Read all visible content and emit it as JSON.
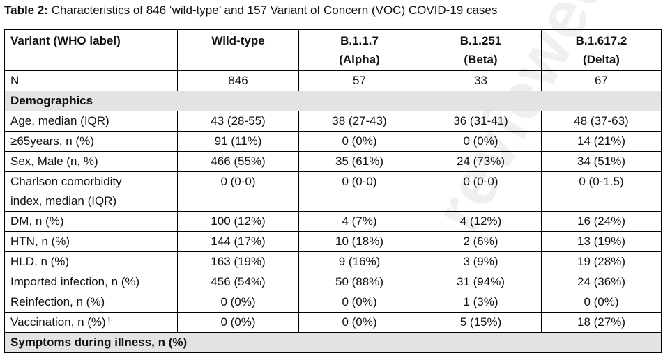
{
  "caption": {
    "label": "Table 2:",
    "text": " Characteristics of 846 ‘wild-type’ and 157 Variant of Concern (VOC) COVID-19 cases"
  },
  "watermark": "reviewed",
  "table": {
    "header": {
      "variant": "Variant (WHO label)",
      "wild": "Wild-type",
      "alpha": "B.1.1.7\n(Alpha)",
      "beta": "B.1.251\n(Beta)",
      "delta": "B.1.617.2\n(Delta)"
    },
    "n_row": {
      "label": "N",
      "wild": "846",
      "alpha": "57",
      "beta": "33",
      "delta": "67"
    },
    "section_demographics": "Demographics",
    "rows": [
      {
        "label": "Age, median (IQR)",
        "wild": "43 (28-55)",
        "alpha": "38 (27-43)",
        "beta": "36 (31-41)",
        "delta": "48 (37-63)"
      },
      {
        "label": "≥65years, n (%)",
        "wild": "91 (11%)",
        "alpha": "0 (0%)",
        "beta": "0 (0%)",
        "delta": "14 (21%)"
      },
      {
        "label": "Sex, Male (n, %)",
        "wild": "466 (55%)",
        "alpha": "35 (61%)",
        "beta": "24 (73%)",
        "delta": "34 (51%)"
      },
      {
        "label": "Charlson comorbidity\nindex, median (IQR)",
        "wild": "0 (0-0)",
        "alpha": "0 (0-0)",
        "beta": "0 (0-0)",
        "delta": "0 (0-1.5)"
      },
      {
        "label": "DM, n (%)",
        "wild": "100 (12%)",
        "alpha": "4 (7%)",
        "beta": "4 (12%)",
        "delta": "16 (24%)"
      },
      {
        "label": "HTN, n (%)",
        "wild": "144 (17%)",
        "alpha": "10 (18%)",
        "beta": "2 (6%)",
        "delta": "13 (19%)"
      },
      {
        "label": "HLD, n (%)",
        "wild": "163 (19%)",
        "alpha": "9 (16%)",
        "beta": "3 (9%)",
        "delta": "19 (28%)"
      },
      {
        "label": "Imported infection, n (%)",
        "wild": "456 (54%)",
        "alpha": "50 (88%)",
        "beta": "31 (94%)",
        "delta": "24 (36%)"
      },
      {
        "label": "Reinfection, n (%)",
        "wild": "0 (0%)",
        "alpha": "0 (0%)",
        "beta": "1 (3%)",
        "delta": "0 (0%)"
      },
      {
        "label": "Vaccination, n (%)†",
        "wild": "0 (0%)",
        "alpha": "0 (0%)",
        "beta": "5 (15%)",
        "delta": "18 (27%)"
      }
    ],
    "section_symptoms": "Symptoms during illness, n (%)"
  }
}
